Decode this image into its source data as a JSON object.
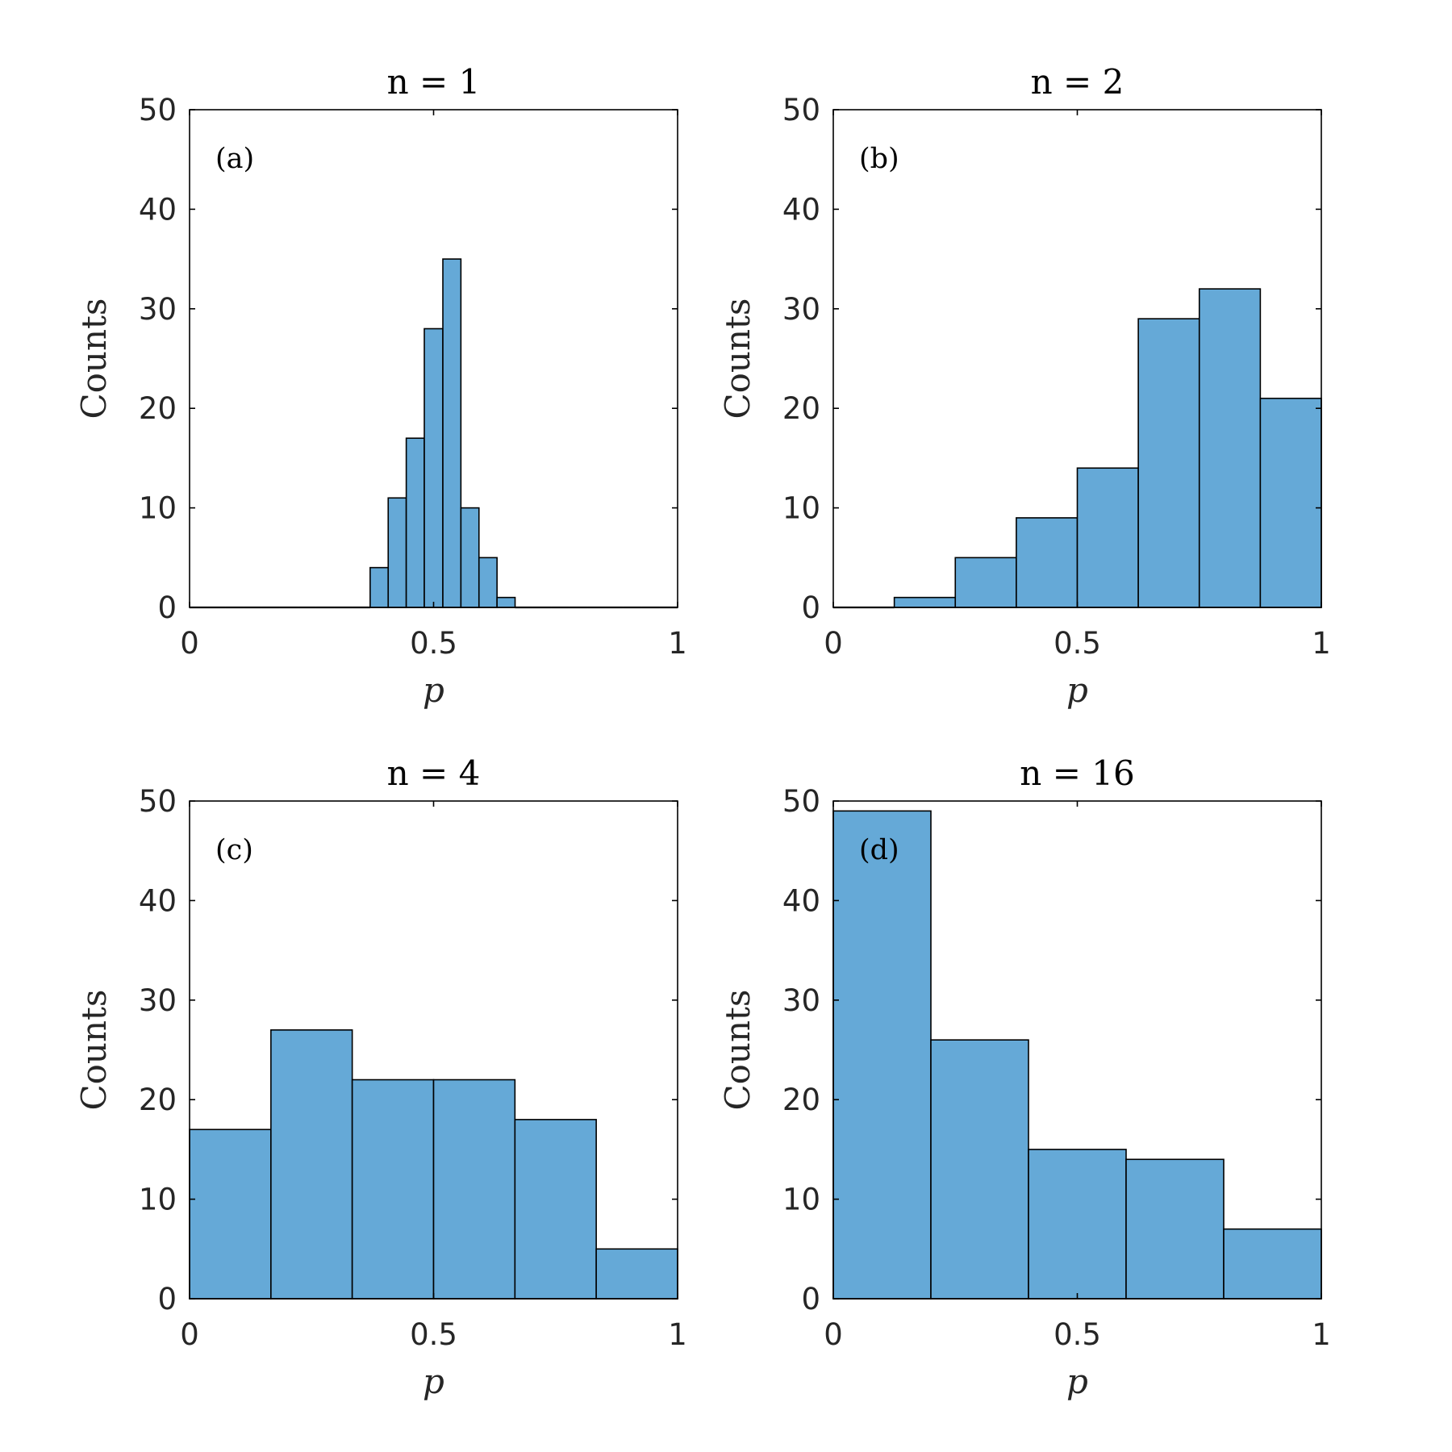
{
  "colors": {
    "bar_fill": "#65a9d7",
    "bar_edge": "#000000",
    "axis": "#000000",
    "text": "#262626"
  },
  "chart_data": [
    {
      "type": "bar",
      "panel_label": "(a)",
      "title": "n = 1",
      "xlabel": "p",
      "ylabel": "Counts",
      "xlim": [
        0,
        1
      ],
      "ylim": [
        0,
        50
      ],
      "xticks": [
        "0",
        "0.5",
        "1"
      ],
      "yticks": [
        "0",
        "10",
        "20",
        "30",
        "40",
        "50"
      ],
      "bin_edges": [
        0.0,
        0.037,
        0.074,
        0.111,
        0.148,
        0.185,
        0.222,
        0.259,
        0.296,
        0.333,
        0.37,
        0.407,
        0.444,
        0.481,
        0.519,
        0.556,
        0.593,
        0.63,
        0.667,
        0.704,
        0.741,
        0.778,
        0.815,
        0.852,
        0.889,
        0.926,
        0.963,
        1.0
      ],
      "values": [
        0,
        0,
        0,
        0,
        0,
        0,
        0,
        0,
        0,
        0,
        4,
        11,
        17,
        28,
        35,
        10,
        5,
        1,
        0,
        0,
        0,
        0,
        0,
        0,
        0,
        0,
        0
      ]
    },
    {
      "type": "bar",
      "panel_label": "(b)",
      "title": "n = 2",
      "xlabel": "p",
      "ylabel": "Counts",
      "xlim": [
        0,
        1
      ],
      "ylim": [
        0,
        50
      ],
      "xticks": [
        "0",
        "0.5",
        "1"
      ],
      "yticks": [
        "0",
        "10",
        "20",
        "30",
        "40",
        "50"
      ],
      "bin_edges": [
        0.0,
        0.125,
        0.25,
        0.375,
        0.5,
        0.625,
        0.75,
        0.875,
        1.0
      ],
      "values": [
        0,
        1,
        5,
        9,
        14,
        29,
        32,
        21
      ]
    },
    {
      "type": "bar",
      "panel_label": "(c)",
      "title": "n = 4",
      "xlabel": "p",
      "ylabel": "Counts",
      "xlim": [
        0,
        1
      ],
      "ylim": [
        0,
        50
      ],
      "xticks": [
        "0",
        "0.5",
        "1"
      ],
      "yticks": [
        "0",
        "10",
        "20",
        "30",
        "40",
        "50"
      ],
      "bin_edges": [
        0.0,
        0.1667,
        0.3333,
        0.5,
        0.6667,
        0.8333,
        1.0
      ],
      "values": [
        17,
        27,
        22,
        22,
        18,
        5
      ]
    },
    {
      "type": "bar",
      "panel_label": "(d)",
      "title": "n = 16",
      "xlabel": "p",
      "ylabel": "Counts",
      "xlim": [
        0,
        1
      ],
      "ylim": [
        0,
        50
      ],
      "xticks": [
        "0",
        "0.5",
        "1"
      ],
      "yticks": [
        "0",
        "10",
        "20",
        "30",
        "40",
        "50"
      ],
      "bin_edges": [
        0.0,
        0.2,
        0.4,
        0.6,
        0.8,
        1.0
      ],
      "values": [
        49,
        26,
        15,
        14,
        7
      ]
    }
  ]
}
